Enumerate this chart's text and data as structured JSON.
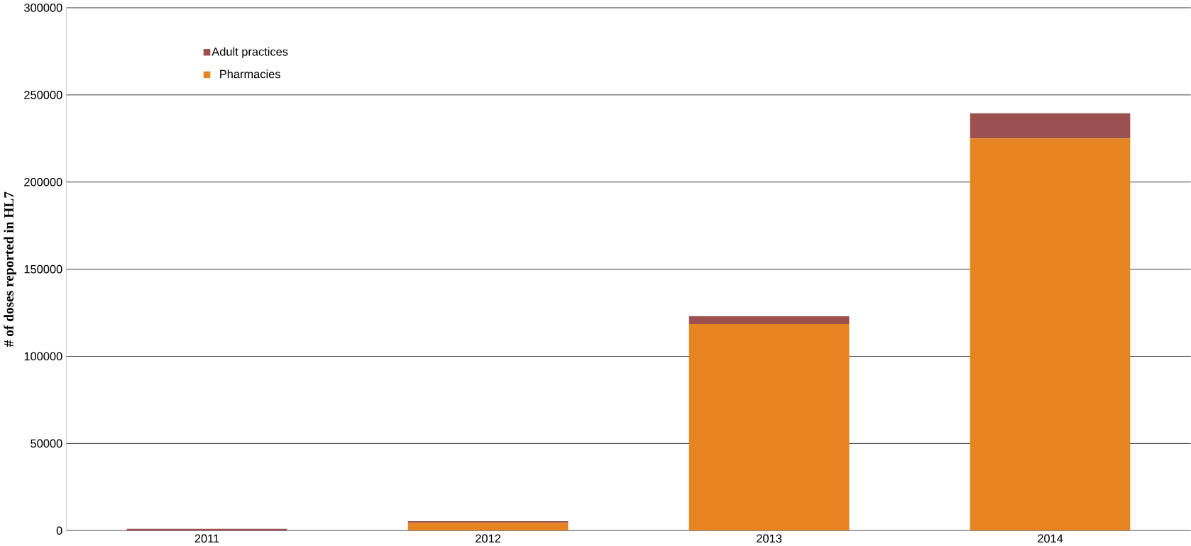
{
  "chart_data": {
    "type": "bar",
    "stacked": true,
    "ylabel": "# of doses reported in HL7",
    "categories": [
      "2011",
      "2012",
      "2013",
      "2014"
    ],
    "series": [
      {
        "name": "Pharmacies",
        "color": "#e58421",
        "values": [
          0,
          4500,
          118500,
          225000
        ]
      },
      {
        "name": "Adult practices",
        "color": "#9c5050",
        "values": [
          1000,
          900,
          4500,
          14500
        ]
      }
    ],
    "ylim": [
      0,
      300000
    ],
    "yticks": [
      0,
      50000,
      100000,
      150000,
      200000,
      250000,
      300000
    ],
    "grid": "y",
    "legend": "top left"
  }
}
